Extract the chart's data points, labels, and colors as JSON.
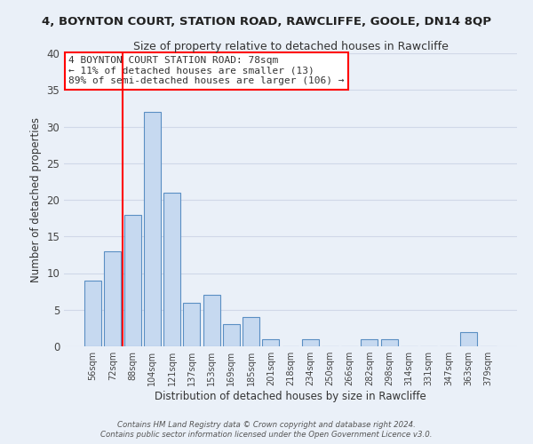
{
  "title": "4, BOYNTON COURT, STATION ROAD, RAWCLIFFE, GOOLE, DN14 8QP",
  "subtitle": "Size of property relative to detached houses in Rawcliffe",
  "xlabel": "Distribution of detached houses by size in Rawcliffe",
  "ylabel": "Number of detached properties",
  "bar_labels": [
    "56sqm",
    "72sqm",
    "88sqm",
    "104sqm",
    "121sqm",
    "137sqm",
    "153sqm",
    "169sqm",
    "185sqm",
    "201sqm",
    "218sqm",
    "234sqm",
    "250sqm",
    "266sqm",
    "282sqm",
    "298sqm",
    "314sqm",
    "331sqm",
    "347sqm",
    "363sqm",
    "379sqm"
  ],
  "bar_values": [
    9,
    13,
    18,
    32,
    21,
    6,
    7,
    3,
    4,
    1,
    0,
    1,
    0,
    0,
    1,
    1,
    0,
    0,
    0,
    2,
    0
  ],
  "bar_color": "#c6d9f0",
  "bar_edge_color": "#5a8fc3",
  "ylim": [
    0,
    40
  ],
  "yticks": [
    0,
    5,
    10,
    15,
    20,
    25,
    30,
    35,
    40
  ],
  "grid_color": "#d0d8e8",
  "background_color": "#eaf0f8",
  "annotation_text": "4 BOYNTON COURT STATION ROAD: 78sqm\n← 11% of detached houses are smaller (13)\n89% of semi-detached houses are larger (106) →",
  "vline_x": 1.5,
  "footer1": "Contains HM Land Registry data © Crown copyright and database right 2024.",
  "footer2": "Contains public sector information licensed under the Open Government Licence v3.0."
}
